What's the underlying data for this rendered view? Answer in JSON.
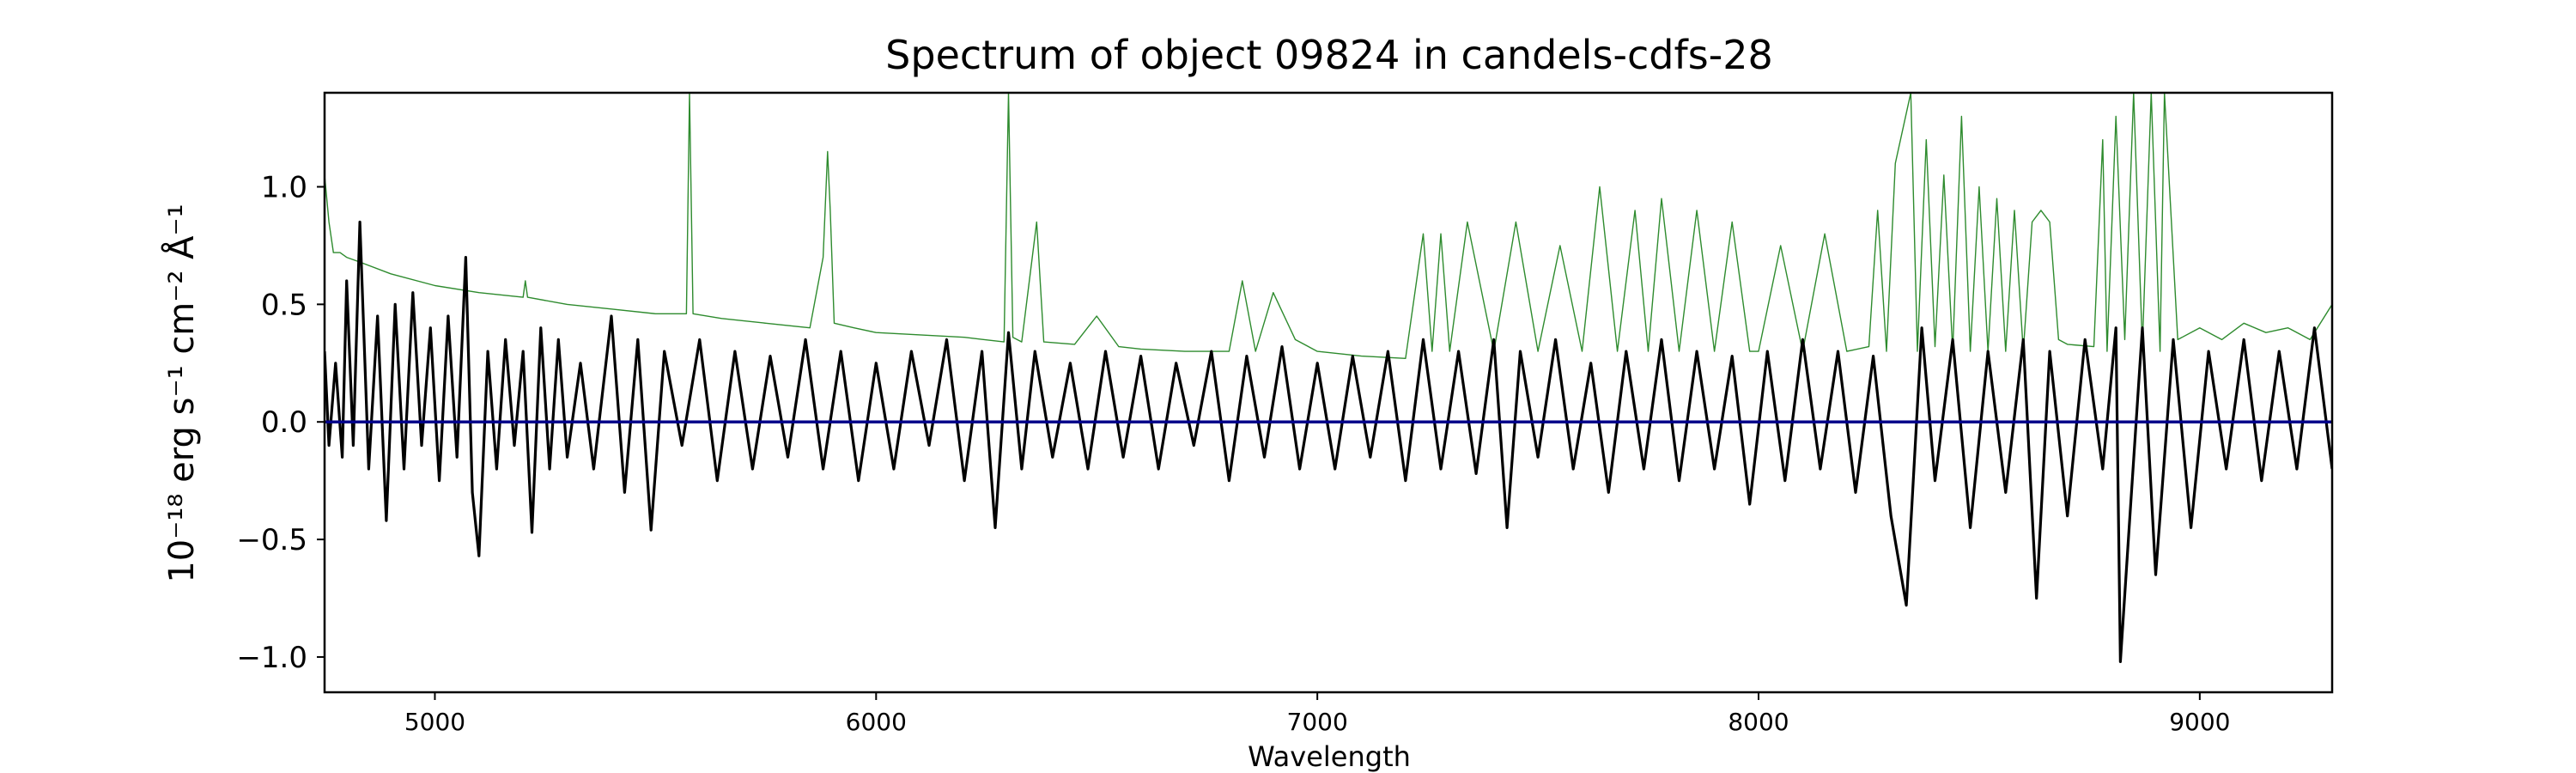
{
  "chart_data": {
    "type": "line",
    "title": "Spectrum of object 09824 in candels-cdfs-28",
    "xlabel": "Wavelength",
    "ylabel": "10⁻¹⁸ erg s⁻¹ cm⁻² Å⁻¹",
    "xlim": [
      4750,
      9300
    ],
    "ylim": [
      -1.15,
      1.4
    ],
    "x_ticks": [
      5000,
      6000,
      7000,
      8000,
      9000
    ],
    "y_ticks": [
      -1.0,
      -0.5,
      0.0,
      0.5,
      1.0
    ],
    "y_tick_labels": [
      "−1.0",
      "−0.5",
      "0.0",
      "0.5",
      "1.0"
    ],
    "grid": false,
    "series": [
      {
        "role": "error",
        "color": "#2e8b2e",
        "x": [
          4750,
          4760,
          4770,
          4785,
          4800,
          4830,
          4900,
          5000,
          5100,
          5200,
          5205,
          5210,
          5300,
          5400,
          5500,
          5570,
          5577,
          5585,
          5650,
          5750,
          5850,
          5880,
          5890,
          5896,
          5905,
          5950,
          6000,
          6100,
          6200,
          6290,
          6300,
          6310,
          6330,
          6364,
          6380,
          6450,
          6500,
          6550,
          6600,
          6700,
          6800,
          6830,
          6860,
          6900,
          6950,
          7000,
          7100,
          7200,
          7240,
          7260,
          7280,
          7300,
          7340,
          7400,
          7450,
          7500,
          7550,
          7600,
          7640,
          7680,
          7720,
          7750,
          7780,
          7820,
          7860,
          7900,
          7940,
          7980,
          8000,
          8050,
          8100,
          8150,
          8200,
          8250,
          8270,
          8290,
          8310,
          8345,
          8360,
          8380,
          8400,
          8420,
          8440,
          8460,
          8480,
          8500,
          8520,
          8540,
          8560,
          8580,
          8600,
          8620,
          8640,
          8660,
          8680,
          8700,
          8760,
          8780,
          8790,
          8810,
          8830,
          8850,
          8870,
          8890,
          8910,
          8920,
          8950,
          9000,
          9050,
          9100,
          9150,
          9200,
          9250,
          9300
        ],
        "y": [
          1.05,
          0.85,
          0.72,
          0.72,
          0.7,
          0.68,
          0.63,
          0.58,
          0.55,
          0.53,
          0.6,
          0.53,
          0.5,
          0.48,
          0.46,
          0.46,
          1.4,
          0.46,
          0.44,
          0.42,
          0.4,
          0.7,
          1.15,
          0.9,
          0.42,
          0.4,
          0.38,
          0.37,
          0.36,
          0.34,
          1.4,
          0.36,
          0.34,
          0.85,
          0.34,
          0.33,
          0.45,
          0.32,
          0.31,
          0.3,
          0.3,
          0.6,
          0.3,
          0.55,
          0.35,
          0.3,
          0.28,
          0.27,
          0.8,
          0.3,
          0.8,
          0.3,
          0.85,
          0.3,
          0.85,
          0.3,
          0.75,
          0.3,
          1.0,
          0.3,
          0.9,
          0.3,
          0.95,
          0.3,
          0.9,
          0.3,
          0.85,
          0.3,
          0.3,
          0.75,
          0.3,
          0.8,
          0.3,
          0.32,
          0.9,
          0.3,
          1.1,
          1.4,
          0.3,
          1.2,
          0.32,
          1.05,
          0.3,
          1.3,
          0.3,
          1.0,
          0.3,
          0.95,
          0.3,
          0.9,
          0.3,
          0.85,
          0.9,
          0.85,
          0.35,
          0.33,
          0.32,
          1.2,
          0.3,
          1.3,
          0.35,
          1.4,
          0.32,
          1.4,
          0.3,
          1.4,
          0.35,
          0.4,
          0.35,
          0.42,
          0.38,
          0.4,
          0.35,
          0.5
        ]
      },
      {
        "role": "flux",
        "color": "#000000",
        "x": [
          4750,
          4760,
          4775,
          4790,
          4800,
          4815,
          4830,
          4850,
          4870,
          4890,
          4910,
          4930,
          4950,
          4970,
          4990,
          5010,
          5030,
          5050,
          5070,
          5085,
          5100,
          5120,
          5140,
          5160,
          5180,
          5200,
          5220,
          5240,
          5260,
          5280,
          5300,
          5330,
          5360,
          5400,
          5430,
          5460,
          5490,
          5520,
          5560,
          5600,
          5640,
          5680,
          5720,
          5760,
          5800,
          5840,
          5880,
          5920,
          5960,
          6000,
          6040,
          6080,
          6120,
          6160,
          6200,
          6240,
          6270,
          6300,
          6330,
          6360,
          6400,
          6440,
          6480,
          6520,
          6560,
          6600,
          6640,
          6680,
          6720,
          6760,
          6800,
          6840,
          6880,
          6920,
          6960,
          7000,
          7040,
          7080,
          7120,
          7160,
          7200,
          7240,
          7280,
          7320,
          7360,
          7400,
          7430,
          7460,
          7500,
          7540,
          7580,
          7620,
          7660,
          7700,
          7740,
          7780,
          7820,
          7860,
          7900,
          7940,
          7980,
          8020,
          8060,
          8100,
          8140,
          8180,
          8220,
          8260,
          8300,
          8335,
          8370,
          8400,
          8440,
          8480,
          8520,
          8560,
          8600,
          8630,
          8660,
          8700,
          8740,
          8780,
          8810,
          8820,
          8840,
          8870,
          8900,
          8940,
          8980,
          9020,
          9060,
          9100,
          9140,
          9180,
          9220,
          9260,
          9300
        ],
        "y": [
          0.3,
          -0.1,
          0.25,
          -0.15,
          0.6,
          -0.1,
          0.85,
          -0.2,
          0.45,
          -0.42,
          0.5,
          -0.2,
          0.55,
          -0.1,
          0.4,
          -0.25,
          0.45,
          -0.15,
          0.7,
          -0.3,
          -0.57,
          0.3,
          -0.2,
          0.35,
          -0.1,
          0.3,
          -0.47,
          0.4,
          -0.2,
          0.35,
          -0.15,
          0.25,
          -0.2,
          0.45,
          -0.3,
          0.35,
          -0.46,
          0.3,
          -0.1,
          0.35,
          -0.25,
          0.3,
          -0.2,
          0.28,
          -0.15,
          0.35,
          -0.2,
          0.3,
          -0.25,
          0.25,
          -0.2,
          0.3,
          -0.1,
          0.35,
          -0.25,
          0.3,
          -0.45,
          0.38,
          -0.2,
          0.3,
          -0.15,
          0.25,
          -0.2,
          0.3,
          -0.15,
          0.28,
          -0.2,
          0.25,
          -0.1,
          0.3,
          -0.25,
          0.28,
          -0.15,
          0.32,
          -0.2,
          0.25,
          -0.2,
          0.28,
          -0.15,
          0.3,
          -0.25,
          0.35,
          -0.2,
          0.3,
          -0.22,
          0.35,
          -0.45,
          0.3,
          -0.15,
          0.35,
          -0.2,
          0.25,
          -0.3,
          0.3,
          -0.2,
          0.35,
          -0.25,
          0.3,
          -0.2,
          0.28,
          -0.35,
          0.3,
          -0.25,
          0.35,
          -0.2,
          0.3,
          -0.3,
          0.28,
          -0.4,
          -0.78,
          0.4,
          -0.25,
          0.35,
          -0.45,
          0.3,
          -0.3,
          0.35,
          -0.75,
          0.3,
          -0.4,
          0.35,
          -0.2,
          0.4,
          -1.02,
          -0.45,
          0.4,
          -0.65,
          0.35,
          -0.45,
          0.3,
          -0.2,
          0.35,
          -0.25,
          0.3,
          -0.2,
          0.4,
          -0.2
        ]
      },
      {
        "role": "zero",
        "color": "#00008b",
        "x": [
          4750,
          9300
        ],
        "y": [
          0,
          0
        ]
      }
    ]
  }
}
